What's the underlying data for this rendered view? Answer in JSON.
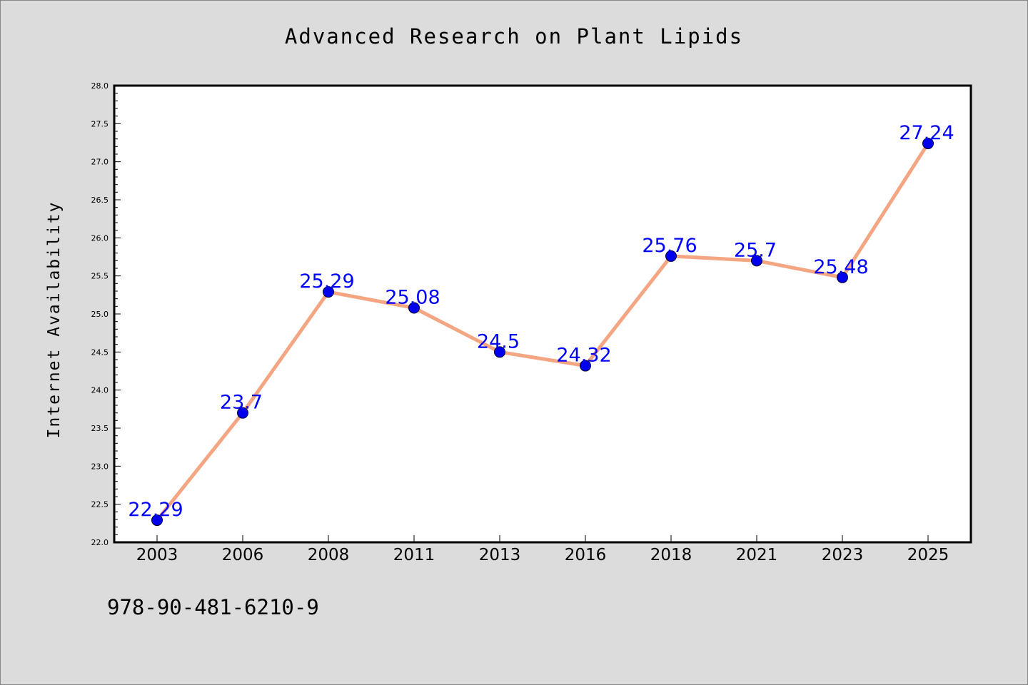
{
  "chart_data": {
    "type": "line",
    "title": "Advanced Research on Plant Lipids",
    "xlabel": "",
    "ylabel": "Internet Availability",
    "categories": [
      "2003",
      "2006",
      "2008",
      "2011",
      "2013",
      "2016",
      "2018",
      "2021",
      "2023",
      "2025"
    ],
    "values": [
      22.29,
      23.7,
      25.29,
      25.08,
      24.5,
      24.32,
      25.76,
      25.7,
      25.48,
      27.24
    ],
    "data_labels": [
      "22.29",
      "23.7",
      "25.29",
      "25.08",
      "24.5",
      "24.32",
      "25.76",
      "25.7",
      "25.48",
      "27.24"
    ],
    "ylim": [
      22.0,
      28.0
    ],
    "y_ticks": [
      "22.0",
      "22.5",
      "23.0",
      "23.5",
      "24.0",
      "24.5",
      "25.0",
      "25.5",
      "26.0",
      "26.5",
      "27.0",
      "27.5",
      "28.0"
    ],
    "grid": false,
    "legend": "none",
    "colors": {
      "line": "#f4a582",
      "marker": "#0000ee",
      "label": "#0000ff",
      "background": "#dcdcdc",
      "plot_background": "#ffffff"
    }
  },
  "footnote": "978-90-481-6210-9"
}
